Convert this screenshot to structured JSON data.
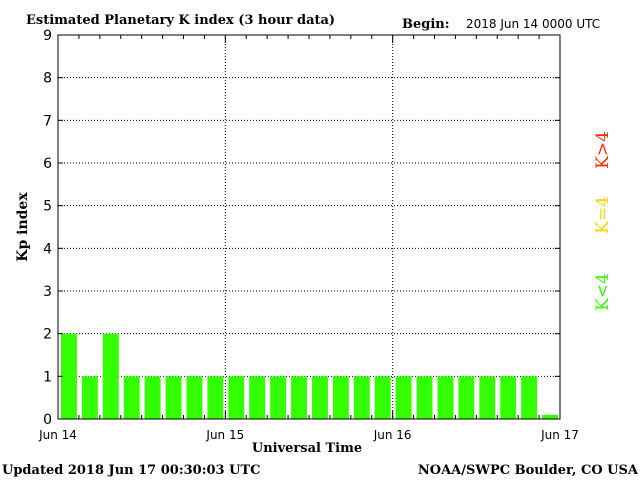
{
  "header": {
    "title": "Estimated Planetary K index (3 hour data)",
    "begin_label": "Begin:",
    "begin_value": "2018 Jun 14 0000 UTC"
  },
  "footer": {
    "updated": "Updated 2018 Jun 17 00:30:03 UTC",
    "credit": "NOAA/SWPC Boulder, CO USA"
  },
  "legend": {
    "items": [
      {
        "label": "K>4",
        "color": "#ff2a00"
      },
      {
        "label": "K=4",
        "color": "#ffd400"
      },
      {
        "label": "K<4",
        "color": "#33ff00"
      }
    ]
  },
  "colors": {
    "bar": "#33ff00",
    "frame": "#000000",
    "grid": "#000000"
  },
  "chart_data": {
    "type": "bar",
    "title": "Estimated Planetary K index (3 hour data)",
    "xlabel": "Universal Time",
    "ylabel": "Kp index",
    "ylim": [
      0,
      9
    ],
    "yticks": [
      0,
      1,
      2,
      3,
      4,
      5,
      6,
      7,
      8,
      9
    ],
    "xtick_labels": [
      "Jun 14",
      "Jun 15",
      "Jun 16",
      "Jun 17"
    ],
    "grid": true,
    "values": [
      2,
      1,
      2,
      1,
      1,
      1,
      1,
      1,
      1,
      1,
      1,
      1,
      1,
      1,
      1,
      1,
      1,
      1,
      1,
      1,
      1,
      1,
      1,
      0.1
    ]
  }
}
